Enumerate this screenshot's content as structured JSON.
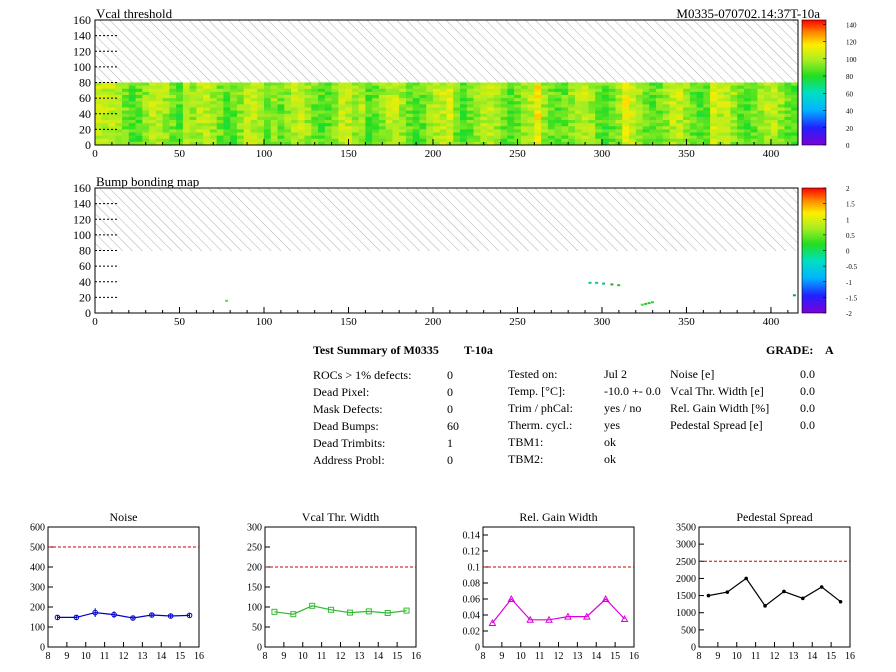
{
  "maps": [
    {
      "title": "Vcal threshold",
      "module_label": "M0335-070702.14:37T-10a",
      "xlim": [
        0,
        416
      ],
      "ylim": [
        0,
        160
      ],
      "x_ticks": [
        "0",
        "50",
        "100",
        "150",
        "200",
        "250",
        "300",
        "350",
        "400"
      ],
      "y_ticks": [
        "0",
        "20",
        "40",
        "60",
        "80",
        "100",
        "120",
        "140",
        "160"
      ],
      "palette_ticks": [
        "0",
        "20",
        "40",
        "60",
        "80",
        "100",
        "120",
        "140"
      ],
      "palette_range": [
        0,
        145
      ],
      "hatched_rows_above": 80
    },
    {
      "title": "Bump bonding map",
      "xlim": [
        0,
        416
      ],
      "ylim": [
        0,
        160
      ],
      "x_ticks": [
        "0",
        "50",
        "100",
        "150",
        "200",
        "250",
        "300",
        "350",
        "400"
      ],
      "y_ticks": [
        "0",
        "20",
        "40",
        "60",
        "80",
        "100",
        "120",
        "140",
        "160"
      ],
      "palette_ticks": [
        "-2",
        "-1.5",
        "-1",
        "-0.5",
        "0",
        "0.5",
        "1",
        "1.5",
        "2"
      ],
      "palette_range": [
        -2,
        2
      ],
      "hatched_rows_above": 80
    }
  ],
  "summary": {
    "title": "Test Summary of M0335",
    "suffix": "T-10a",
    "grade_label": "GRADE:",
    "grade": "A",
    "col1": [
      {
        "label": "ROCs > 1% defects:",
        "value": "0"
      },
      {
        "label": "Dead Pixel:",
        "value": "0"
      },
      {
        "label": "Mask Defects:",
        "value": "0"
      },
      {
        "label": "Dead Bumps:",
        "value": "60"
      },
      {
        "label": "Dead Trimbits:",
        "value": "1"
      },
      {
        "label": "Address Probl:",
        "value": "0"
      }
    ],
    "col2": [
      {
        "label": "Tested on:",
        "value": "Jul 2"
      },
      {
        "label": "Temp. [°C]:",
        "value": "-10.0 +- 0.0"
      },
      {
        "label": "Trim / phCal:",
        "value": "yes / no"
      },
      {
        "label": "Therm. cycl.:",
        "value": "yes"
      },
      {
        "label": "TBM1:",
        "value": "ok"
      },
      {
        "label": "TBM2:",
        "value": "ok"
      }
    ],
    "col3": [
      {
        "label": "Noise [e]",
        "value": "0.0"
      },
      {
        "label": "Vcal Thr. Width [e]",
        "value": "0.0"
      },
      {
        "label": "Rel. Gain Width [%]",
        "value": "0.0"
      },
      {
        "label": "Pedestal Spread [e]",
        "value": "0.0"
      }
    ]
  },
  "chart_data": [
    {
      "type": "line",
      "title": "Noise",
      "x": [
        8.5,
        9.5,
        10.5,
        11.5,
        12.5,
        13.5,
        14.5,
        15.5
      ],
      "values": [
        148,
        148,
        172,
        162,
        145,
        160,
        155,
        158
      ],
      "errors": [
        10,
        10,
        22,
        16,
        12,
        12,
        12,
        10
      ],
      "xlim": [
        8,
        16
      ],
      "ylim": [
        0,
        600
      ],
      "limit": 500,
      "x_ticks": [
        "8",
        "9",
        "10",
        "11",
        "12",
        "13",
        "14",
        "15",
        "16"
      ],
      "y_ticks": [
        0,
        100,
        200,
        300,
        400,
        500,
        600
      ],
      "color": "#0000cc",
      "marker": "circle"
    },
    {
      "type": "line",
      "title": "Vcal Thr. Width",
      "x": [
        8.5,
        9.5,
        10.5,
        11.5,
        12.5,
        13.5,
        14.5,
        15.5
      ],
      "values": [
        88,
        82,
        103,
        93,
        86,
        89,
        85,
        91
      ],
      "xlim": [
        8,
        16
      ],
      "ylim": [
        0,
        300
      ],
      "limit": 200,
      "x_ticks": [
        "8",
        "9",
        "10",
        "11",
        "12",
        "13",
        "14",
        "15",
        "16"
      ],
      "y_ticks": [
        0,
        50,
        100,
        150,
        200,
        250,
        300
      ],
      "color": "#33bb33",
      "marker": "square"
    },
    {
      "type": "line",
      "title": "Rel. Gain Width",
      "x": [
        8.5,
        9.5,
        10.5,
        11.5,
        12.5,
        13.5,
        14.5,
        15.5
      ],
      "values": [
        0.03,
        0.06,
        0.034,
        0.034,
        0.038,
        0.038,
        0.06,
        0.035
      ],
      "xlim": [
        8,
        16
      ],
      "ylim": [
        0,
        0.15
      ],
      "limit": 0.1,
      "x_ticks": [
        "8",
        "9",
        "10",
        "11",
        "12",
        "13",
        "14",
        "15",
        "16"
      ],
      "y_ticks": [
        "0",
        "0.02",
        "0.04",
        "0.06",
        "0.08",
        "0.1",
        "0.12",
        "0.14"
      ],
      "y_tick_values": [
        0,
        0.02,
        0.04,
        0.06,
        0.08,
        0.1,
        0.12,
        0.14
      ],
      "color": "#dd00dd",
      "marker": "triangle"
    },
    {
      "type": "line",
      "title": "Pedestal Spread",
      "x": [
        8.5,
        9.5,
        10.5,
        11.5,
        12.5,
        13.5,
        14.5,
        15.5
      ],
      "values": [
        1500,
        1600,
        2000,
        1200,
        1620,
        1420,
        1750,
        1320
      ],
      "xlim": [
        8,
        16
      ],
      "ylim": [
        0,
        3500
      ],
      "limit": 2500,
      "x_ticks": [
        "8",
        "9",
        "10",
        "11",
        "12",
        "13",
        "14",
        "15",
        "16"
      ],
      "y_ticks": [
        0,
        500,
        1000,
        1500,
        2000,
        2500,
        3000,
        3500
      ],
      "color": "#000000",
      "marker": "dot"
    }
  ]
}
